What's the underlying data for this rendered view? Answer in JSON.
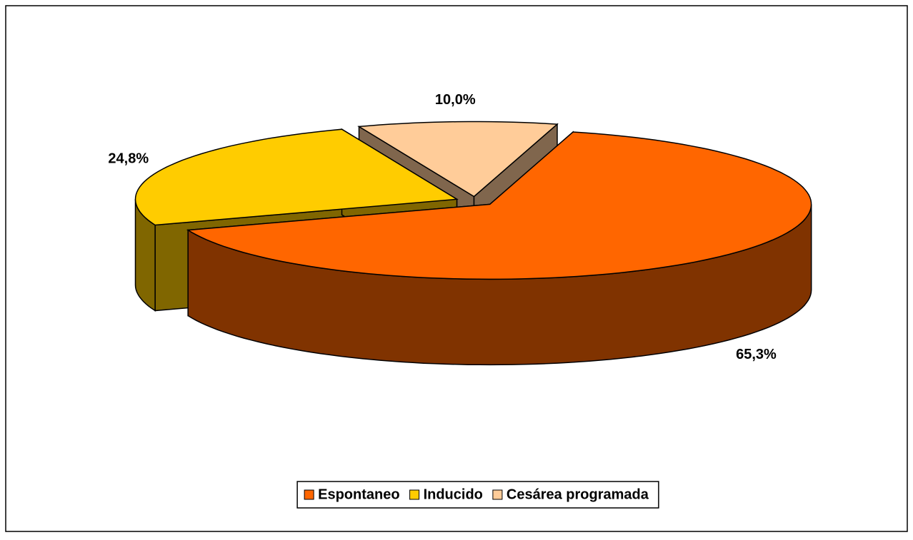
{
  "chart_data": {
    "type": "pie",
    "categories": [
      "Espontaneo",
      "Inducido",
      "Cesárea programada"
    ],
    "values": [
      65.3,
      24.8,
      10.0
    ],
    "value_labels": [
      "65,3%",
      "24,8%",
      "10,0%"
    ],
    "colors": [
      "#ff6600",
      "#ffcc00",
      "#ffcc99"
    ],
    "legend": "bottom"
  }
}
